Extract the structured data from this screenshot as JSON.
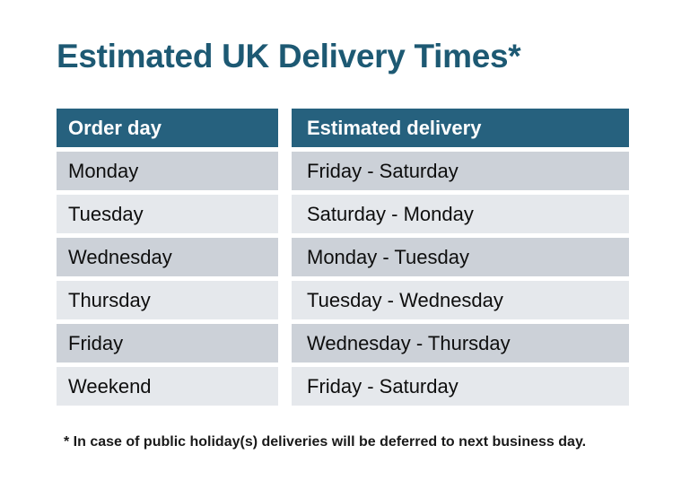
{
  "page": {
    "title": "Estimated UK Delivery Times*",
    "footnote": "* In case of public holiday(s) deliveries will be deferred to next business day."
  },
  "table": {
    "headers": [
      "Order day",
      "Estimated delivery"
    ],
    "rows": [
      {
        "order_day": "Monday",
        "delivery": "Friday - Saturday"
      },
      {
        "order_day": "Tuesday",
        "delivery": "Saturday - Monday"
      },
      {
        "order_day": "Wednesday",
        "delivery": "Monday - Tuesday"
      },
      {
        "order_day": "Thursday",
        "delivery": "Tuesday - Wednesday"
      },
      {
        "order_day": "Friday",
        "delivery": "Wednesday - Thursday"
      },
      {
        "order_day": "Weekend",
        "delivery": "Friday - Saturday"
      }
    ]
  },
  "colors": {
    "title_text": "#1d5973",
    "header_bg": "#26617e",
    "header_text": "#ffffff",
    "row_dark_bg": "#ccd1d8",
    "row_light_bg": "#e5e8ec",
    "cell_text": "#0e0e0e",
    "page_bg": "#ffffff"
  }
}
